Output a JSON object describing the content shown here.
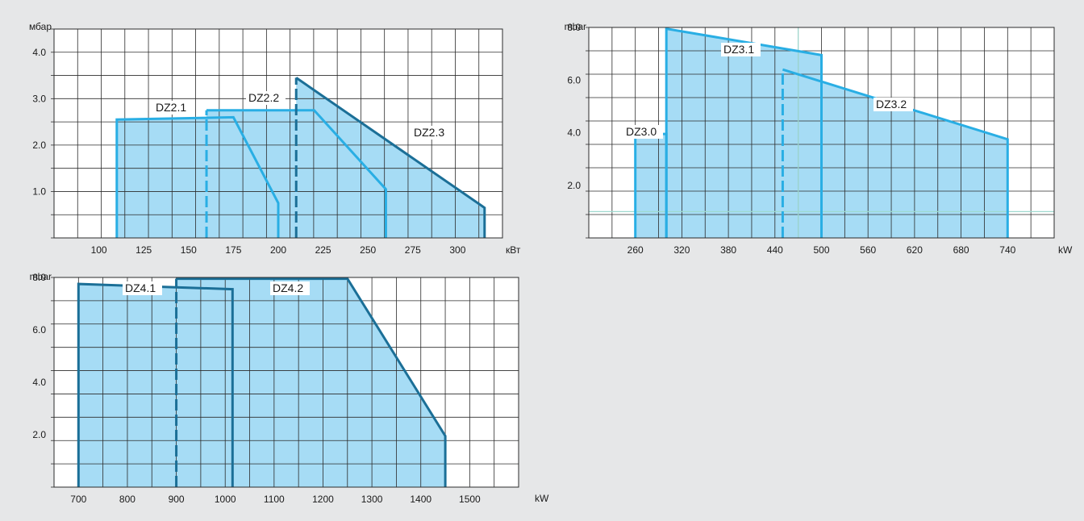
{
  "colors": {
    "background": "#e6e7e8",
    "plot_background": "#ffffff",
    "grid": "#2b2b2b",
    "fill": "#a6dcf5",
    "outline_light": "#29aee4",
    "outline_dark": "#1b6f97",
    "crosshair": "#9ed9cf"
  },
  "chart_data": [
    {
      "type": "area",
      "ylabel": "мбар",
      "xlabel": "кВт",
      "xlim": [
        75,
        325
      ],
      "ylim": [
        0,
        4.5
      ],
      "x_ticks": [
        "100",
        "125",
        "150",
        "175",
        "200",
        "225",
        "250",
        "275",
        "300"
      ],
      "y_ticks": [
        "1.0",
        "2.0",
        "3.0",
        "4.0"
      ],
      "grid": true,
      "series": [
        {
          "name": "DZ2.1",
          "outline": "light",
          "points": [
            [
              110,
              0
            ],
            [
              110,
              2.55
            ],
            [
              175,
              2.6
            ],
            [
              200,
              0.75
            ],
            [
              200,
              0
            ]
          ]
        },
        {
          "name": "DZ2.2",
          "outline": "light",
          "points": [
            [
              160,
              0
            ],
            [
              160,
              2.75
            ],
            [
              220,
              2.75
            ],
            [
              260,
              1.05
            ],
            [
              260,
              0
            ]
          ]
        },
        {
          "name": "DZ2.3",
          "outline": "dark",
          "points": [
            [
              210,
              0
            ],
            [
              210,
              3.45
            ],
            [
              315,
              0.65
            ],
            [
              315,
              0
            ]
          ]
        }
      ],
      "dashed_x": [
        160,
        210
      ]
    },
    {
      "type": "area",
      "ylabel": "mbar",
      "xlabel": "kW",
      "xlim": [
        200,
        800
      ],
      "ylim": [
        0,
        8.0
      ],
      "x_ticks": [
        "260",
        "320",
        "380",
        "440",
        "500",
        "560",
        "620",
        "680",
        "740"
      ],
      "y_ticks": [
        "2.0",
        "4.0",
        "6.0",
        "8.0"
      ],
      "grid": true,
      "series": [
        {
          "name": "DZ3.0",
          "outline": "light",
          "points": [
            [
              260,
              0
            ],
            [
              260,
              3.95
            ],
            [
              300,
              3.95
            ],
            [
              300,
              0
            ]
          ]
        },
        {
          "name": "DZ3.1",
          "outline": "light",
          "points": [
            [
              300,
              0
            ],
            [
              300,
              7.95
            ],
            [
              500,
              6.95
            ],
            [
              500,
              0
            ]
          ]
        },
        {
          "name": "DZ3.2",
          "outline": "light",
          "points": [
            [
              450,
              0
            ],
            [
              450,
              6.4
            ],
            [
              740,
              3.75
            ],
            [
              740,
              0
            ]
          ]
        }
      ],
      "dashed_x": [
        450
      ],
      "crosshair": {
        "x": 470,
        "y": 1.0
      }
    },
    {
      "type": "area",
      "ylabel": "mbar",
      "xlabel": "kW",
      "xlim": [
        650,
        1600
      ],
      "ylim": [
        0,
        8.0
      ],
      "x_ticks": [
        "700",
        "800",
        "900",
        "1000",
        "1100",
        "1200",
        "1300",
        "1400",
        "1500"
      ],
      "y_ticks": [
        "2.0",
        "4.0",
        "6.0",
        "8.0"
      ],
      "grid": true,
      "series": [
        {
          "name": "DZ4.1",
          "outline": "dark",
          "points": [
            [
              700,
              0
            ],
            [
              700,
              7.75
            ],
            [
              1015,
              7.55
            ],
            [
              1015,
              0
            ]
          ]
        },
        {
          "name": "DZ4.2",
          "outline": "dark",
          "points": [
            [
              900,
              0
            ],
            [
              900,
              7.95
            ],
            [
              1250,
              7.95
            ],
            [
              1450,
              1.95
            ],
            [
              1450,
              0
            ]
          ]
        }
      ],
      "dashed_x": [
        900
      ]
    }
  ]
}
